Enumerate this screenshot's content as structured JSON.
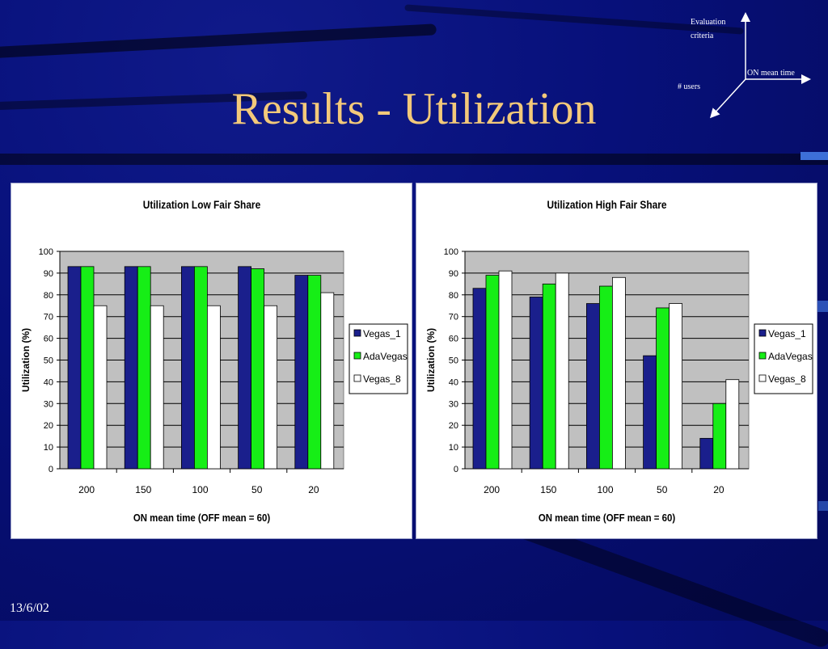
{
  "slide": {
    "title": "Results - Utilization",
    "date": "13/6/02"
  },
  "axes_diagram": {
    "y_label_line1": "Evaluation",
    "y_label_line2": "criteria",
    "x_label": "ON mean time",
    "z_label": "# users"
  },
  "colors": {
    "title": "#f3c97a",
    "vegas_1": "#1a1f8c",
    "adavegas": "#16ee16",
    "vegas_8": "#ffffff",
    "plot_bg": "#c0c0c0"
  },
  "chart_data": [
    {
      "type": "bar",
      "title": "Utilization Low Fair Share",
      "xlabel": "ON mean time (OFF mean = 60)",
      "ylabel": "Utilization (%)",
      "ylim": [
        0,
        100
      ],
      "yticks": [
        0,
        10,
        20,
        30,
        40,
        50,
        60,
        70,
        80,
        90,
        100
      ],
      "categories": [
        "200",
        "150",
        "100",
        "50",
        "20"
      ],
      "series": [
        {
          "name": "Vegas_1",
          "color": "#1a1f8c",
          "values": [
            93,
            93,
            93,
            93,
            89
          ]
        },
        {
          "name": "AdaVegas",
          "color": "#16ee16",
          "values": [
            93,
            93,
            93,
            92,
            89
          ]
        },
        {
          "name": "Vegas_8",
          "color": "#ffffff",
          "values": [
            75,
            75,
            75,
            75,
            81
          ]
        }
      ],
      "grid": true,
      "legend": "right"
    },
    {
      "type": "bar",
      "title": "Utilization High Fair Share",
      "xlabel": "ON mean time (OFF mean = 60)",
      "ylabel": "Utilization (%)",
      "ylim": [
        0,
        100
      ],
      "yticks": [
        0,
        10,
        20,
        30,
        40,
        50,
        60,
        70,
        80,
        90,
        100
      ],
      "categories": [
        "200",
        "150",
        "100",
        "50",
        "20"
      ],
      "series": [
        {
          "name": "Vegas_1",
          "color": "#1a1f8c",
          "values": [
            83,
            79,
            76,
            52,
            14
          ]
        },
        {
          "name": "AdaVegas",
          "color": "#16ee16",
          "values": [
            89,
            85,
            84,
            74,
            30
          ]
        },
        {
          "name": "Vegas_8",
          "color": "#ffffff",
          "values": [
            91,
            90,
            88,
            76,
            41
          ]
        }
      ],
      "grid": true,
      "legend": "right"
    }
  ]
}
